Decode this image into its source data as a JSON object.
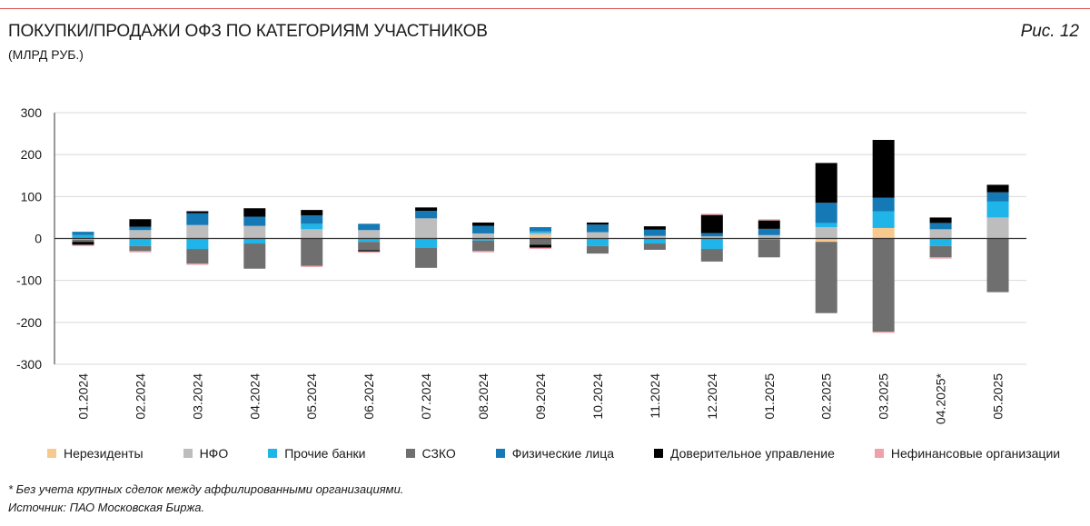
{
  "header": {
    "title": "ПОКУПКИ/ПРОДАЖИ ОФЗ ПО КАТЕГОРИЯМ УЧАСТНИКОВ",
    "subtitle": "(МЛРД РУБ.)",
    "figure_label": "Рис. 12"
  },
  "footer": {
    "note": "* Без учета крупных сделок между аффилированными организациями.",
    "source": "Источник: ПАО Московская Биржа."
  },
  "chart_data": {
    "type": "bar",
    "stacked": true,
    "categories": [
      "01.2024",
      "02.2024",
      "03.2024",
      "04.2024",
      "05.2024",
      "06.2024",
      "07.2024",
      "08.2024",
      "09.2024",
      "10.2024",
      "11.2024",
      "12.2024",
      "01.2025",
      "02.2025",
      "03.2025",
      "04.2025*",
      "05.2025"
    ],
    "ylim": [
      -300,
      300
    ],
    "yticks": [
      300,
      200,
      100,
      0,
      -100,
      -200,
      -300
    ],
    "grid": true,
    "legend_position": "bottom",
    "series": [
      {
        "name": "Нерезиденты",
        "color": "#f8c98e",
        "values": [
          0,
          0,
          0,
          0,
          0,
          0,
          0,
          0,
          8,
          0,
          0,
          0,
          0,
          -8,
          25,
          0,
          0
        ]
      },
      {
        "name": "НФО",
        "color": "#bdbdbd",
        "values": [
          -3,
          20,
          32,
          30,
          22,
          20,
          48,
          12,
          5,
          15,
          6,
          5,
          8,
          27,
          0,
          22,
          50
        ]
      },
      {
        "name": "Прочие банки",
        "color": "#1fb5e8",
        "values": [
          8,
          -18,
          -25,
          -12,
          13,
          -8,
          -22,
          -5,
          4,
          -18,
          -12,
          -25,
          -3,
          10,
          40,
          -18,
          38
        ]
      },
      {
        "name": "СЗКО",
        "color": "#6f6f6f",
        "values": [
          -5,
          -12,
          -35,
          -60,
          -65,
          -20,
          -48,
          -25,
          -15,
          -18,
          -15,
          -30,
          -42,
          -170,
          -222,
          -27,
          -128
        ]
      },
      {
        "name": "Физические лица",
        "color": "#1479b5",
        "values": [
          8,
          8,
          28,
          22,
          20,
          15,
          18,
          18,
          10,
          18,
          15,
          8,
          15,
          48,
          32,
          15,
          22
        ]
      },
      {
        "name": "Доверительное управление",
        "color": "#000000",
        "values": [
          -7,
          18,
          5,
          20,
          13,
          -3,
          8,
          8,
          -7,
          5,
          8,
          43,
          20,
          95,
          138,
          13,
          18
        ]
      },
      {
        "name": "Нефинансовые организации",
        "color": "#f0a0a8",
        "values": [
          -3,
          -3,
          -3,
          0,
          -3,
          -3,
          0,
          -3,
          -3,
          0,
          0,
          3,
          3,
          0,
          -3,
          -3,
          0
        ]
      }
    ]
  }
}
